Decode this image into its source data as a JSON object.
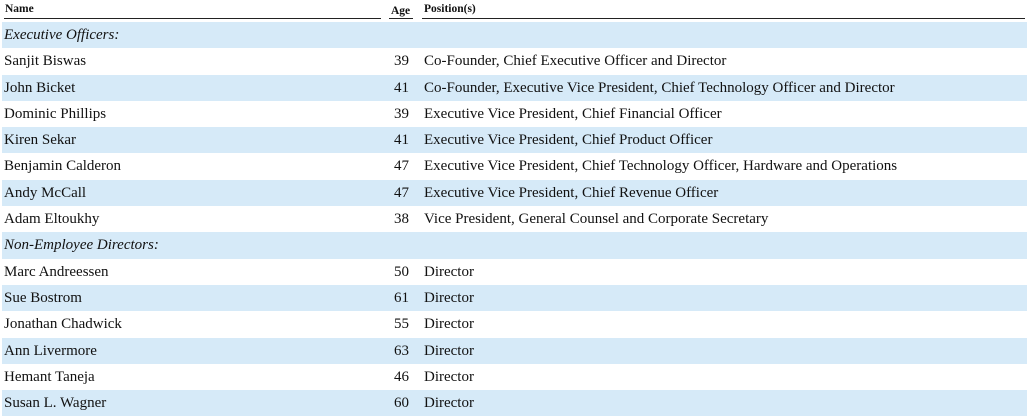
{
  "header": {
    "name": "Name",
    "age": "Age",
    "positions": "Position(s)"
  },
  "sections": [
    {
      "label": "Executive Officers:",
      "rows": [
        {
          "name": "Sanjit Biswas",
          "age": "39",
          "position": "Co-Founder, Chief Executive Officer and Director"
        },
        {
          "name": "John Bicket",
          "age": "41",
          "position": "Co-Founder, Executive Vice President, Chief Technology Officer and Director"
        },
        {
          "name": "Dominic Phillips",
          "age": "39",
          "position": "Executive Vice President, Chief Financial Officer"
        },
        {
          "name": "Kiren Sekar",
          "age": "41",
          "position": "Executive Vice President, Chief Product Officer"
        },
        {
          "name": "Benjamin Calderon",
          "age": "47",
          "position": "Executive Vice President, Chief Technology Officer, Hardware and Operations"
        },
        {
          "name": "Andy McCall",
          "age": "47",
          "position": "Executive Vice President, Chief Revenue Officer"
        },
        {
          "name": "Adam Eltoukhy",
          "age": "38",
          "position": "Vice President, General Counsel and Corporate Secretary"
        }
      ]
    },
    {
      "label": "Non-Employee Directors:",
      "rows": [
        {
          "name": "Marc Andreessen",
          "age": "50",
          "position": "Director"
        },
        {
          "name": "Sue Bostrom",
          "age": "61",
          "position": "Director"
        },
        {
          "name": "Jonathan Chadwick",
          "age": "55",
          "position": "Director"
        },
        {
          "name": "Ann Livermore",
          "age": "63",
          "position": "Director"
        },
        {
          "name": "Hemant Taneja",
          "age": "46",
          "position": "Director"
        },
        {
          "name": "Susan L. Wagner",
          "age": "60",
          "position": "Director"
        }
      ]
    }
  ],
  "colors": {
    "stripe": "#d6eaf8",
    "text": "#111111",
    "rule": "#222222"
  }
}
